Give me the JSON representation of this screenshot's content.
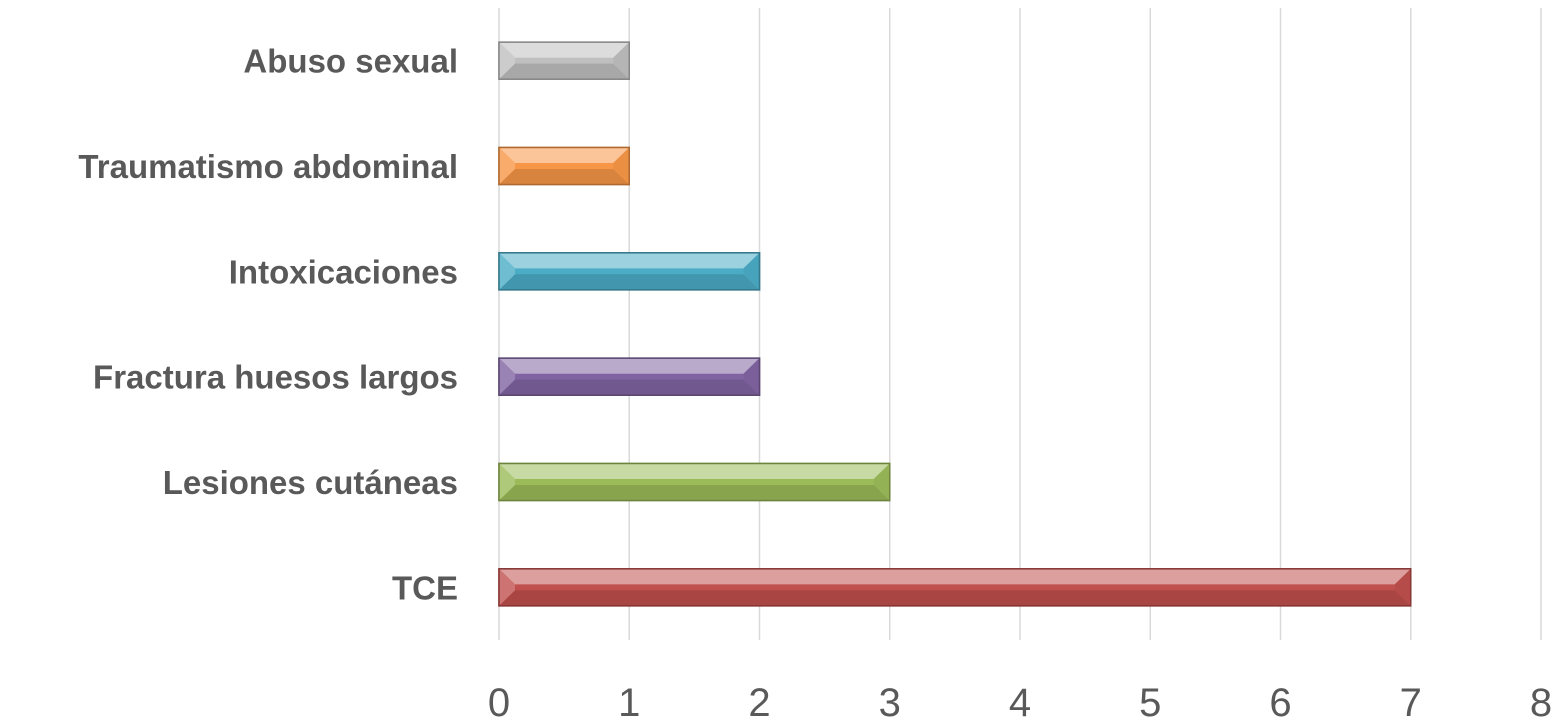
{
  "chart_data": {
    "type": "bar",
    "orientation": "horizontal",
    "categories": [
      "TCE",
      "Lesiones cutáneas",
      "Fractura huesos largos",
      "Intoxicaciones",
      "Traumatismo abdominal",
      "Abuso sexual"
    ],
    "values": [
      7,
      3,
      2,
      2,
      1,
      1
    ],
    "colors": [
      "#c0504d",
      "#9bbb59",
      "#8064a2",
      "#4bacc6",
      "#f79646",
      "#bfbfbf"
    ],
    "xlim": [
      0,
      8
    ],
    "xticks": [
      "0",
      "1",
      "2",
      "3",
      "4",
      "5",
      "6",
      "7",
      "8"
    ],
    "grid": true,
    "legend": "none"
  }
}
